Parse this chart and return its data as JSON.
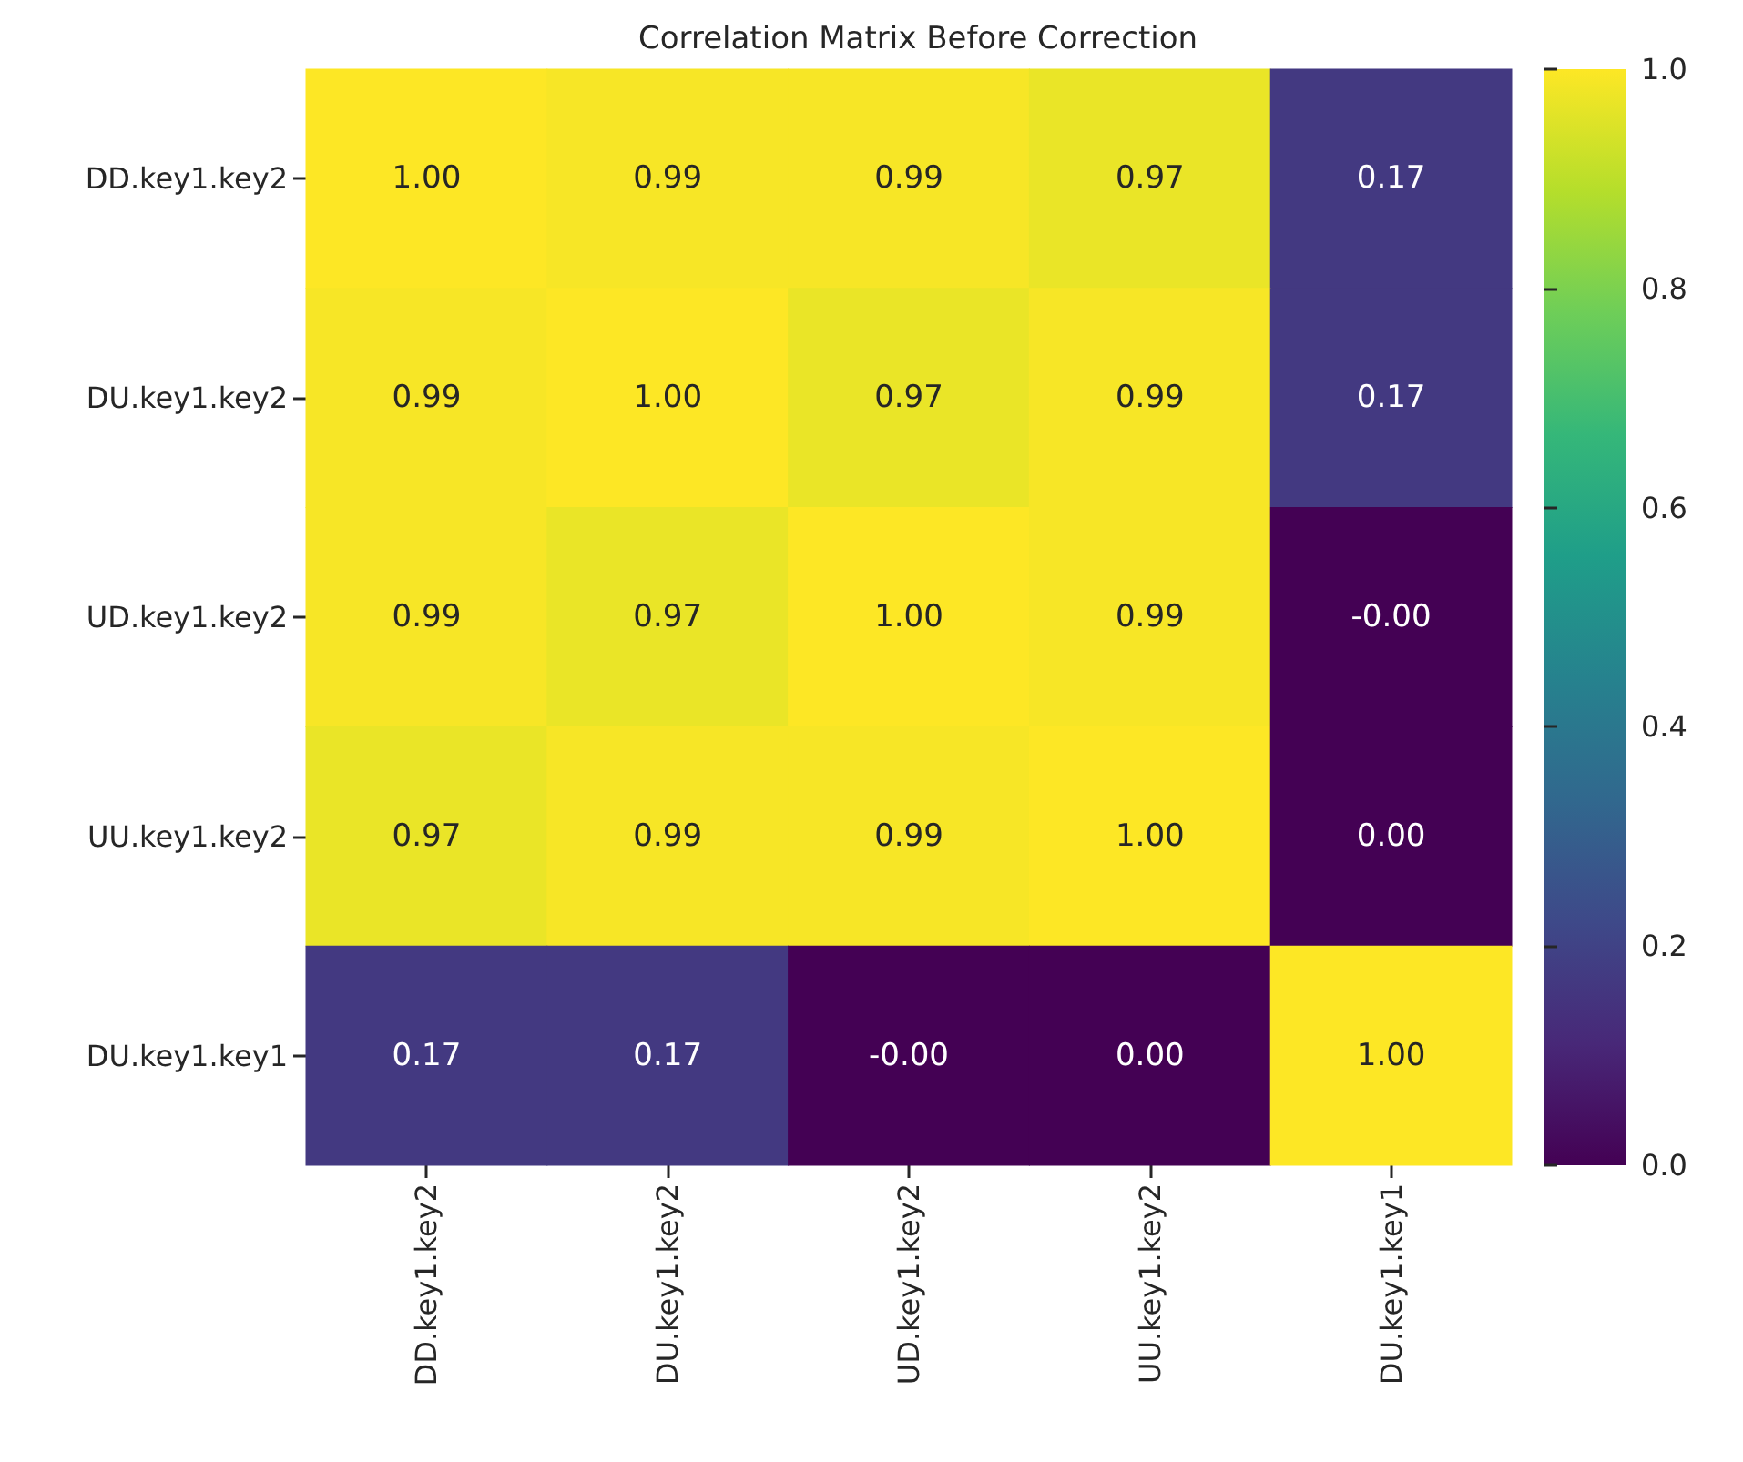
{
  "chart_data": {
    "type": "heatmap",
    "title": "Correlation Matrix Before Correction",
    "categories": [
      "DD.key1.key2",
      "DU.key1.key2",
      "UD.key1.key2",
      "UU.key1.key2",
      "DU.key1.key1"
    ],
    "y_categories": [
      "DD.key1.key2",
      "DU.key1.key2",
      "UD.key1.key2",
      "UU.key1.key2",
      "DU.key1.key1"
    ],
    "cells": [
      [
        1.0,
        0.99,
        0.99,
        0.97,
        0.17
      ],
      [
        0.99,
        1.0,
        0.97,
        0.99,
        0.17
      ],
      [
        0.99,
        0.97,
        1.0,
        0.99,
        0.0
      ],
      [
        0.97,
        0.99,
        0.99,
        1.0,
        0.0
      ],
      [
        0.17,
        0.17,
        0.0,
        0.0,
        1.0
      ]
    ],
    "cell_labels": [
      [
        "1.00",
        "0.99",
        "0.99",
        "0.97",
        "0.17"
      ],
      [
        "0.99",
        "1.00",
        "0.97",
        "0.99",
        "0.17"
      ],
      [
        "0.99",
        "0.97",
        "1.00",
        "0.99",
        "-0.00"
      ],
      [
        "0.97",
        "0.99",
        "0.99",
        "1.00",
        "0.00"
      ],
      [
        "0.17",
        "0.17",
        "-0.00",
        "0.00",
        "1.00"
      ]
    ],
    "clim": [
      0,
      1
    ],
    "cticks": [
      {
        "value": 0,
        "label": "0.0"
      },
      {
        "value": 0.2,
        "label": "0.2"
      },
      {
        "value": 0.4,
        "label": "0.4"
      },
      {
        "value": 0.6,
        "label": "0.6"
      },
      {
        "value": 0.8,
        "label": "0.8"
      },
      {
        "value": 1,
        "label": "1.0"
      }
    ]
  }
}
